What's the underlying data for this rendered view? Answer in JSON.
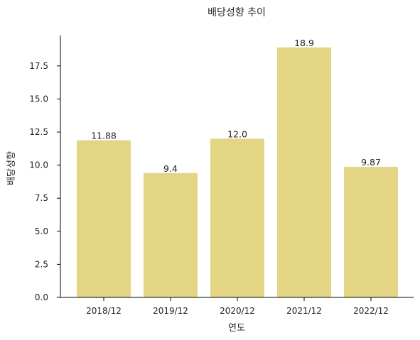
{
  "chart_data": {
    "type": "bar",
    "title": "배당성향 추이",
    "xlabel": "연도",
    "ylabel": "배당성향",
    "categories": [
      "2018/12",
      "2019/12",
      "2020/12",
      "2021/12",
      "2022/12"
    ],
    "values": [
      11.88,
      9.4,
      12.0,
      18.9,
      9.87
    ],
    "data_labels": [
      "11.88",
      "9.4",
      "12.0",
      "18.9",
      "9.87"
    ],
    "ylim": [
      0,
      19.8
    ],
    "yticks": [
      0,
      2.5,
      5,
      7.5,
      10,
      12.5,
      15,
      17.5
    ],
    "ytick_labels": [
      "0.0",
      "2.5",
      "5.0",
      "7.5",
      "10.0",
      "12.5",
      "15.0",
      "17.5"
    ],
    "grid": false,
    "legend": "none",
    "bar_color": "#E4D584"
  }
}
